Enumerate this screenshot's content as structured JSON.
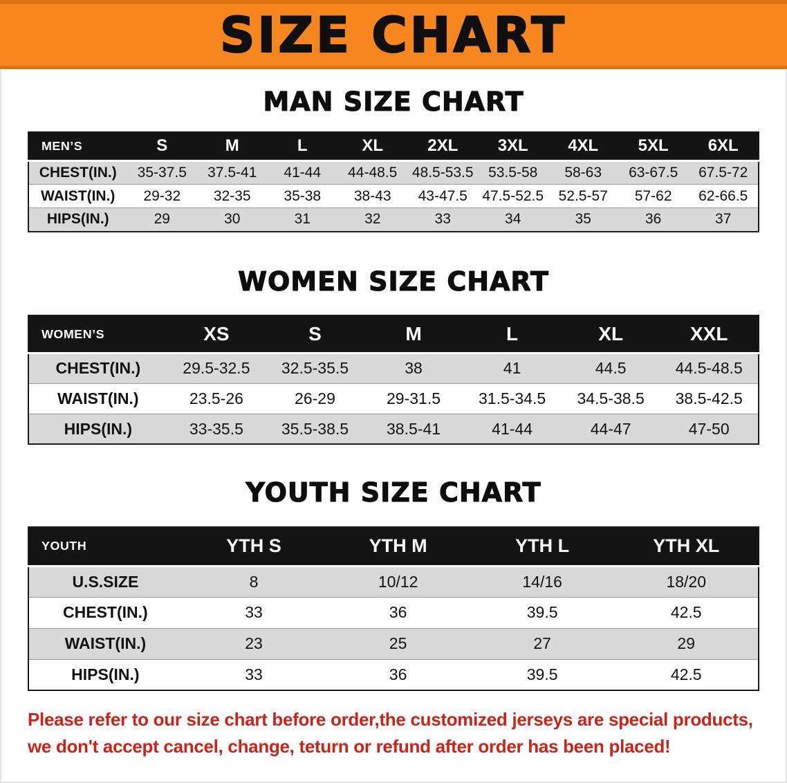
{
  "banner": {
    "title": "SIZE CHART"
  },
  "men": {
    "heading": "MAN SIZE CHART",
    "label": "MEN’S",
    "columns": [
      "S",
      "M",
      "L",
      "XL",
      "2XL",
      "3XL",
      "4XL",
      "5XL",
      "6XL"
    ],
    "rows": [
      {
        "label": "CHEST(IN.)",
        "values": [
          "35-37.5",
          "37.5-41",
          "41-44",
          "44-48.5",
          "48.5-53.5",
          "53.5-58",
          "58-63",
          "63-67.5",
          "67.5-72"
        ]
      },
      {
        "label": "WAIST(IN.)",
        "values": [
          "29-32",
          "32-35",
          "35-38",
          "38-43",
          "43-47.5",
          "47.5-52.5",
          "52.5-57",
          "57-62",
          "62-66.5"
        ]
      },
      {
        "label": "HIPS(IN.)",
        "values": [
          "29",
          "30",
          "31",
          "32",
          "33",
          "34",
          "35",
          "36",
          "37"
        ]
      }
    ]
  },
  "women": {
    "heading": "WOMEN SIZE CHART",
    "label": "WOMEN’S",
    "columns": [
      "XS",
      "S",
      "M",
      "L",
      "XL",
      "XXL"
    ],
    "rows": [
      {
        "label": "CHEST(IN.)",
        "values": [
          "29.5-32.5",
          "32.5-35.5",
          "38",
          "41",
          "44.5",
          "44.5-48.5"
        ]
      },
      {
        "label": "WAIST(IN.)",
        "values": [
          "23.5-26",
          "26-29",
          "29-31.5",
          "31.5-34.5",
          "34.5-38.5",
          "38.5-42.5"
        ]
      },
      {
        "label": "HIPS(IN.)",
        "values": [
          "33-35.5",
          "35.5-38.5",
          "38.5-41",
          "41-44",
          "44-47",
          "47-50"
        ]
      }
    ]
  },
  "youth": {
    "heading": "YOUTH SIZE CHART",
    "label": "YOUTH",
    "columns": [
      "YTH S",
      "YTH M",
      "YTH L",
      "YTH XL"
    ],
    "rows": [
      {
        "label": "U.S.SIZE",
        "values": [
          "8",
          "10/12",
          "14/16",
          "18/20"
        ]
      },
      {
        "label": "CHEST(IN.)",
        "values": [
          "33",
          "36",
          "39.5",
          "42.5"
        ]
      },
      {
        "label": "WAIST(IN.)",
        "values": [
          "23",
          "25",
          "27",
          "29"
        ]
      },
      {
        "label": "HIPS(IN.)",
        "values": [
          "33",
          "36",
          "39.5",
          "42.5"
        ]
      }
    ]
  },
  "footnote": {
    "line1": "Please refer to our size chart before order,the customized jerseys are special products,",
    "line2": "we don't accept cancel, change, teturn or refund after order has been placed!"
  },
  "colors": {
    "banner_bg": "#f6861d",
    "banner_edge": "#de7110",
    "title_color": "#0f0f0f",
    "table_header_bg": "#141414",
    "row_bg": "#ffffff",
    "row_alt_bg": "#d9d9d9",
    "note_color": "#cc2318"
  }
}
